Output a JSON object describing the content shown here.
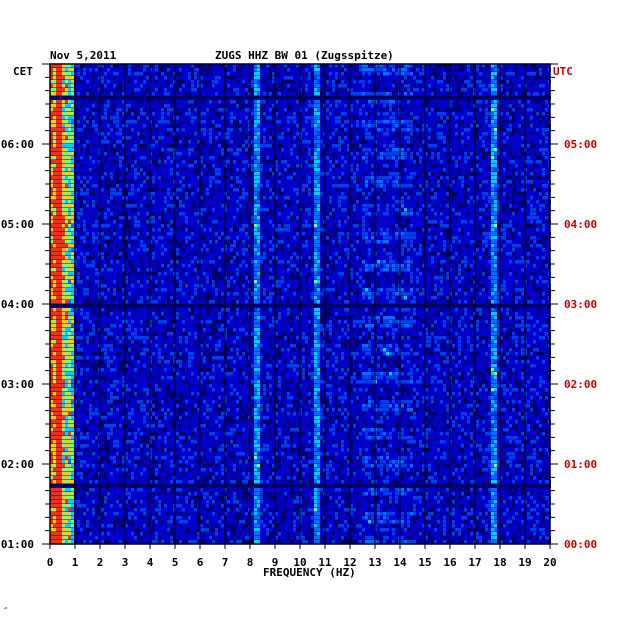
{
  "header": {
    "date": "Nov 5,2011",
    "station": "ZUGS HHZ BW 01 (Zugsspitze)",
    "left_zone": "CET",
    "right_zone": "UTC"
  },
  "footer_mark": "″",
  "colors": {
    "background": "#0000c8",
    "utc_labels": "#cc0000",
    "text": "#000000",
    "grid": "#000000"
  },
  "chart_data": {
    "type": "heatmap",
    "xlabel": "FREQUENCY (HZ)",
    "xlim": [
      0,
      20
    ],
    "x_ticks": [
      "0",
      "1",
      "2",
      "3",
      "4",
      "5",
      "6",
      "7",
      "8",
      "9",
      "10",
      "11",
      "12",
      "13",
      "14",
      "15",
      "16",
      "17",
      "18",
      "19",
      "20"
    ],
    "y_ticks_cet": [
      "06:00",
      "05:00",
      "04:00",
      "03:00",
      "02:00",
      "01:00"
    ],
    "y_ticks_utc": [
      "05:00",
      "04:00",
      "03:00",
      "02:00",
      "01:00",
      "00:00"
    ],
    "spectral_lines_hz": [
      0.4,
      8.3,
      10.7,
      17.8
    ],
    "bright_bands_hz": [
      [
        12.5,
        14.5
      ]
    ],
    "dark_rows_fraction": [
      0.065,
      0.5,
      0.875
    ],
    "grid": true
  }
}
